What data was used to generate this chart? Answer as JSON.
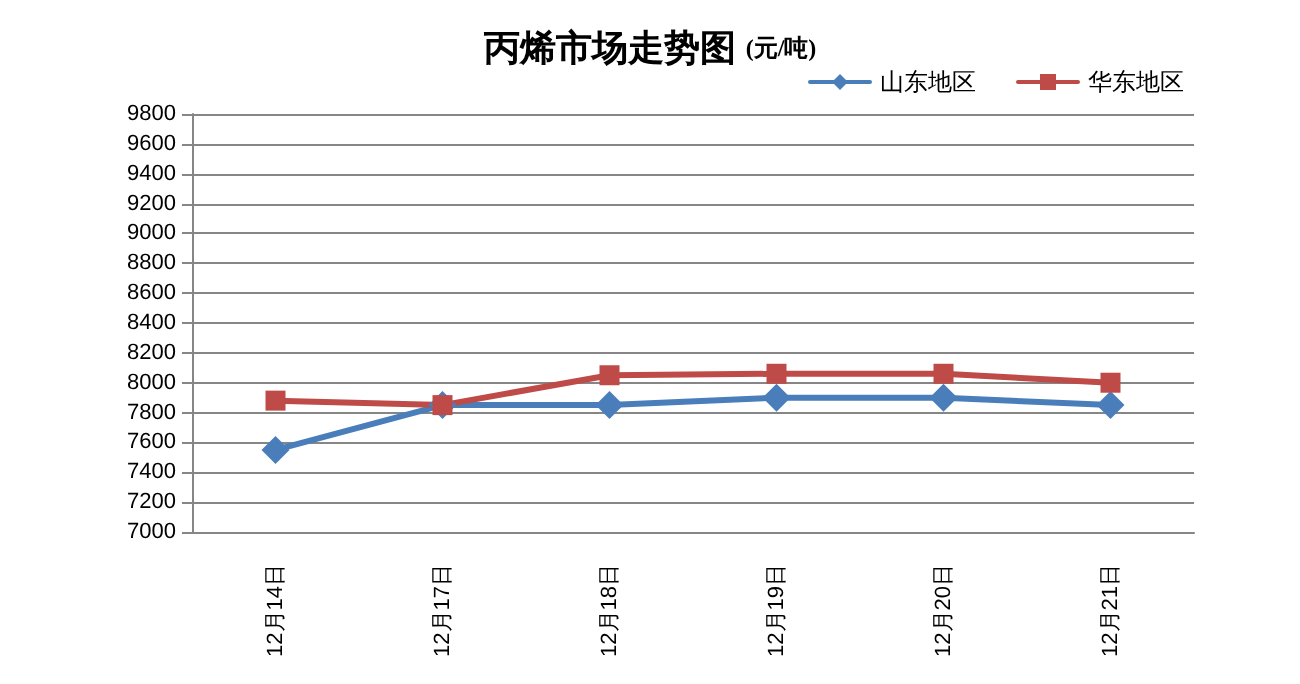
{
  "chart_data": {
    "type": "line",
    "title": "丙烯市场走势图",
    "subtitle": "(元/吨)",
    "categories": [
      "12月14日",
      "12月17日",
      "12月18日",
      "12月19日",
      "12月20日",
      "12月21日"
    ],
    "series": [
      {
        "name": "山东地区",
        "color": "#4a7ebb",
        "marker": "diamond",
        "values": [
          7550,
          7850,
          7850,
          7900,
          7900,
          7850
        ]
      },
      {
        "name": "华东地区",
        "color": "#be4b48",
        "marker": "square",
        "values": [
          7880,
          7850,
          8050,
          8060,
          8060,
          8000
        ]
      }
    ],
    "ylim": [
      7000,
      9800
    ],
    "yticks": [
      7000,
      7200,
      7400,
      7600,
      7800,
      8000,
      8200,
      8400,
      8600,
      8800,
      9000,
      9200,
      9400,
      9600,
      9800
    ],
    "grid": "y",
    "legend": "top right",
    "line_style": "solid"
  }
}
